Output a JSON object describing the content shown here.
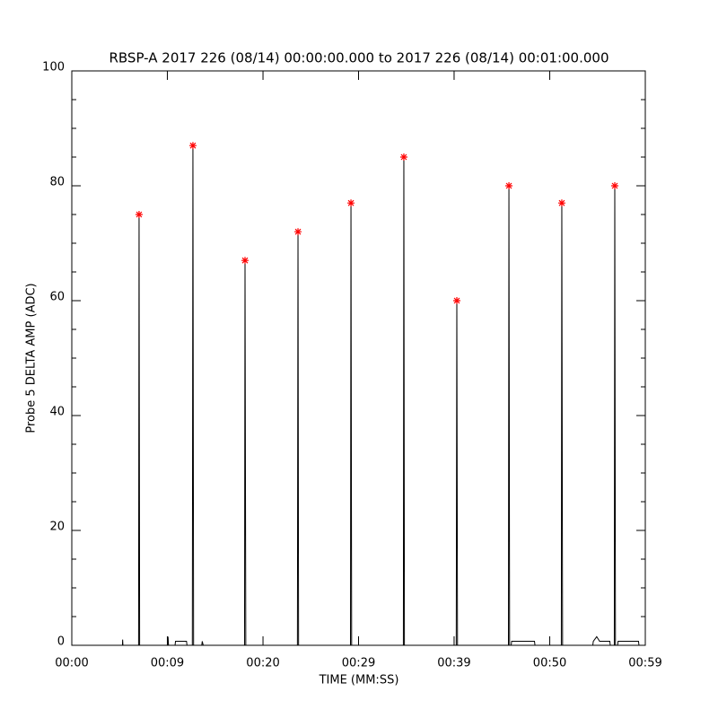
{
  "chart_data": {
    "type": "line",
    "title": "RBSP-A 2017 226 (08/14) 00:00:00.000 to 2017 226 (08/14) 00:01:00.000",
    "xlabel": "TIME (MM:SS)",
    "ylabel": "Probe 5 DELTA AMP (ADC)",
    "xlim": [
      0,
      59
    ],
    "ylim": [
      0,
      100
    ],
    "xticks": [
      {
        "value": 0,
        "label": "00:00"
      },
      {
        "value": 9.83,
        "label": "00:09"
      },
      {
        "value": 19.67,
        "label": "00:20"
      },
      {
        "value": 29.5,
        "label": "00:29"
      },
      {
        "value": 39.33,
        "label": "00:39"
      },
      {
        "value": 49.17,
        "label": "00:50"
      },
      {
        "value": 59,
        "label": "00:59"
      }
    ],
    "yticks": [
      0,
      20,
      40,
      60,
      80,
      100
    ],
    "yminorticks": [
      5,
      10,
      15,
      25,
      30,
      35,
      45,
      50,
      55,
      65,
      70,
      75,
      85,
      90,
      95
    ],
    "x": [
      0,
      5.21,
      5.23,
      5.26,
      6.87,
      6.92,
      6.98,
      9.85,
      9.9,
      9.95,
      10.62,
      10.67,
      11.8,
      11.85,
      12.4,
      12.46,
      12.53,
      13.37,
      13.42,
      13.52,
      17.77,
      17.82,
      17.9,
      23.21,
      23.27,
      23.33,
      28.67,
      28.72,
      28.79,
      34.11,
      34.16,
      34.22,
      39.55,
      39.61,
      39.68,
      44.92,
      44.97,
      45.04,
      45.2,
      45.25,
      47.6,
      47.65,
      50.36,
      50.41,
      50.49,
      53.6,
      53.65,
      54.0,
      54.3,
      55.35,
      55.4,
      55.81,
      55.86,
      55.93,
      56.15,
      56.2,
      58.3,
      58.35,
      59
    ],
    "series": [
      {
        "color": "#000000",
        "values": [
          0,
          0,
          1,
          0,
          0,
          75,
          0,
          0,
          1.5,
          0,
          0,
          0.7,
          0.7,
          0,
          0,
          87,
          0,
          0,
          0.7,
          0,
          0,
          67,
          0,
          0,
          72,
          0,
          0,
          77,
          0,
          0,
          85,
          0,
          0,
          60,
          0,
          0,
          80,
          0,
          0,
          0.7,
          0.7,
          0,
          0,
          77,
          0,
          0,
          0.7,
          1.5,
          0.7,
          0.7,
          0,
          0,
          80,
          0,
          0,
          0.7,
          0.7,
          0,
          0
        ]
      }
    ],
    "peaks": {
      "color": "#ff0000",
      "x": [
        6.92,
        12.46,
        17.82,
        23.27,
        28.72,
        34.16,
        39.61,
        44.97,
        50.41,
        55.86
      ],
      "values": [
        75,
        87,
        67,
        72,
        77,
        85,
        60,
        80,
        77,
        80
      ]
    }
  }
}
